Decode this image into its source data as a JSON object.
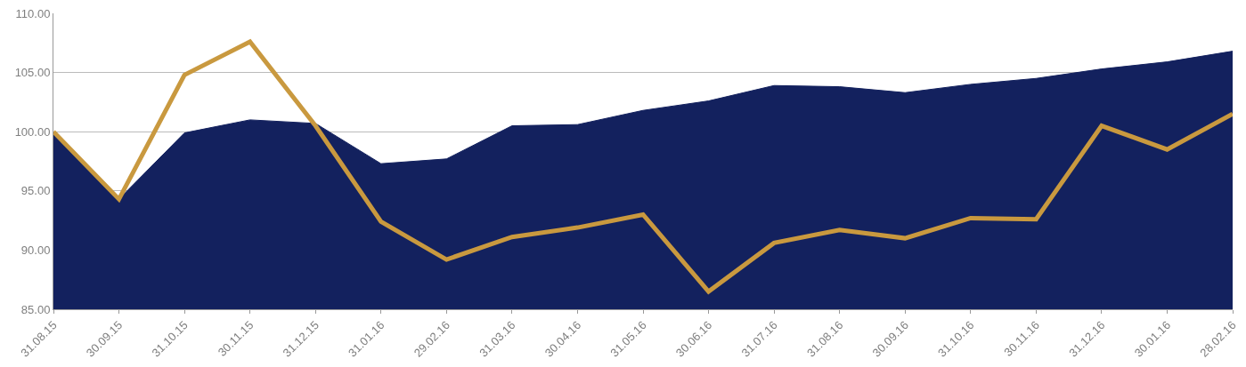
{
  "chart_data": {
    "type": "area",
    "categories": [
      "31.08.15",
      "30.09.15",
      "31.10.15",
      "30.11.15",
      "31.12.15",
      "31.01.16",
      "29.02.16",
      "31.03.16",
      "30.04.16",
      "31.05.16",
      "30.06.16",
      "31.07.16",
      "31.08.16",
      "30.09.16",
      "31.10.16",
      "30.11.16",
      "31.12.16",
      "30.01.16",
      "28.02.16"
    ],
    "series": [
      {
        "color": "#13215e",
        "values": [
          100.0,
          94.3,
          99.9,
          101.0,
          100.7,
          97.3,
          97.7,
          100.5,
          100.6,
          101.8,
          102.6,
          103.9,
          103.8,
          103.3,
          104.0,
          104.5,
          105.3,
          105.9,
          106.8
        ]
      },
      {
        "type": "line",
        "color": "#c9993f",
        "values": [
          100.0,
          94.3,
          104.8,
          107.6,
          100.5,
          92.4,
          89.2,
          91.1,
          91.9,
          93.0,
          86.5,
          90.6,
          91.7,
          91.0,
          92.7,
          92.6,
          100.5,
          98.5,
          101.5
        ]
      }
    ],
    "ylim": [
      85,
      110
    ],
    "yticks": [
      {
        "value": 85,
        "label": "85.00"
      },
      {
        "value": 90,
        "label": "90.00"
      },
      {
        "value": 95,
        "label": "95.00"
      },
      {
        "value": 100,
        "label": "100.00"
      },
      {
        "value": 105,
        "label": "105.00"
      },
      {
        "value": 110,
        "label": "110.00"
      }
    ],
    "grid": "y"
  }
}
